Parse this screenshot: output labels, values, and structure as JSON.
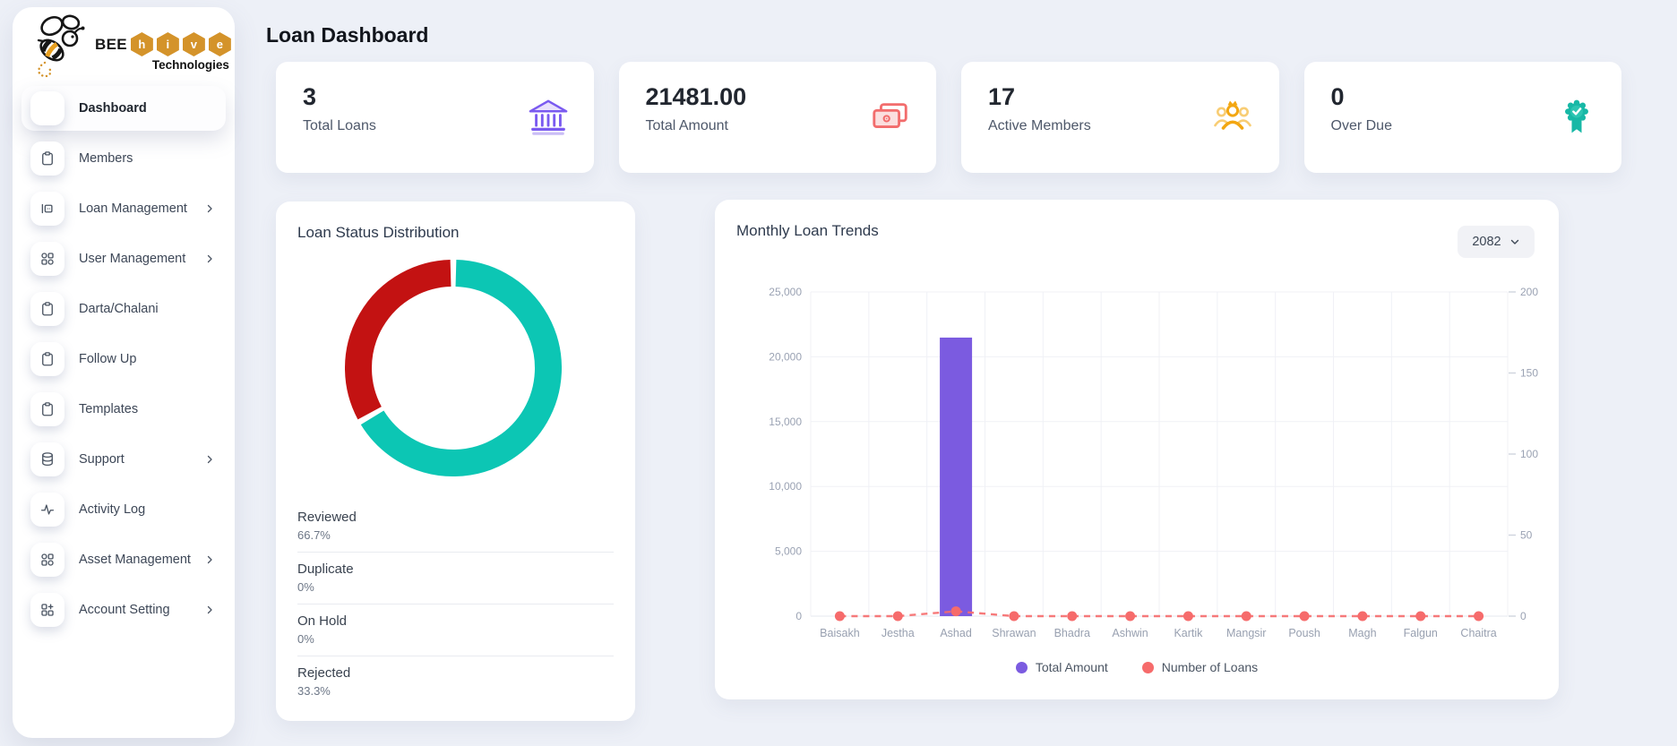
{
  "header": {
    "title": "Loan Dashboard"
  },
  "brand": {
    "prefix": "BEE",
    "hive_letters": [
      "h",
      "i",
      "v",
      "e"
    ],
    "line2": "Technologies",
    "hex_color": "#d4932a"
  },
  "sidebar": {
    "items": [
      {
        "label": "Dashboard",
        "icon": "dashboard-icon",
        "active": true,
        "has_children": false
      },
      {
        "label": "Members",
        "icon": "clipboard-icon",
        "active": false,
        "has_children": false
      },
      {
        "label": "Loan Management",
        "icon": "loan-icon",
        "active": false,
        "has_children": true
      },
      {
        "label": "User Management",
        "icon": "grid-icon",
        "active": false,
        "has_children": true
      },
      {
        "label": "Darta/Chalani",
        "icon": "clipboard-icon",
        "active": false,
        "has_children": false
      },
      {
        "label": "Follow Up",
        "icon": "clipboard-icon",
        "active": false,
        "has_children": false
      },
      {
        "label": "Templates",
        "icon": "clipboard-icon",
        "active": false,
        "has_children": false
      },
      {
        "label": "Support",
        "icon": "database-icon",
        "active": false,
        "has_children": true
      },
      {
        "label": "Activity Log",
        "icon": "activity-icon",
        "active": false,
        "has_children": false
      },
      {
        "label": "Asset Management",
        "icon": "grid-icon",
        "active": false,
        "has_children": true
      },
      {
        "label": "Account Setting",
        "icon": "grid-plus-icon",
        "active": false,
        "has_children": true
      }
    ]
  },
  "stats": [
    {
      "value": "3",
      "label": "Total Loans",
      "icon": "bank-icon",
      "accent": "#7a5af0"
    },
    {
      "value": "21481.00",
      "label": "Total Amount",
      "icon": "cash-icon",
      "accent": "#f26d6d"
    },
    {
      "value": "17",
      "label": "Active Members",
      "icon": "members-icon",
      "accent": "#f3a712"
    },
    {
      "value": "0",
      "label": "Over Due",
      "icon": "badge-icon",
      "accent": "#17b8a6"
    }
  ],
  "donut_card": {
    "title": "Loan Status Distribution",
    "legend": [
      {
        "label": "Reviewed",
        "value": "66.7%"
      },
      {
        "label": "Duplicate",
        "value": "0%"
      },
      {
        "label": "On Hold",
        "value": "0%"
      },
      {
        "label": "Rejected",
        "value": "33.3%"
      }
    ]
  },
  "trends_card": {
    "title": "Monthly Loan Trends",
    "year": "2082"
  },
  "chart_data": [
    {
      "type": "pie",
      "subtype": "doughnut",
      "title": "Loan Status Distribution",
      "labels": [
        "Reviewed",
        "Duplicate",
        "On Hold",
        "Rejected"
      ],
      "values": [
        66.7,
        0,
        0,
        33.3
      ],
      "colors": [
        "#0cc6b4",
        null,
        null,
        "#c31212"
      ],
      "legend_position": "bottom-list"
    },
    {
      "type": "bar",
      "title": "Monthly Loan Trends",
      "year": "2082",
      "categories": [
        "Baisakh",
        "Jestha",
        "Ashad",
        "Shrawan",
        "Bhadra",
        "Ashwin",
        "Kartik",
        "Mangsir",
        "Poush",
        "Magh",
        "Falgun",
        "Chaitra"
      ],
      "series": [
        {
          "name": "Total Amount",
          "type": "bar",
          "axis": "left",
          "color": "#7b5be0",
          "values": [
            0,
            0,
            21481,
            0,
            0,
            0,
            0,
            0,
            0,
            0,
            0,
            0
          ]
        },
        {
          "name": "Number of Loans",
          "type": "line",
          "line_style": "dashed",
          "axis": "right",
          "color": "#f66b6b",
          "values": [
            0,
            0,
            3,
            0,
            0,
            0,
            0,
            0,
            0,
            0,
            0,
            0
          ]
        }
      ],
      "left_axis": {
        "ticks": [
          "0",
          "5,000",
          "10,000",
          "15,000",
          "20,000",
          "25,000"
        ],
        "max": 25000
      },
      "right_axis": {
        "ticks": [
          "0",
          "50",
          "100",
          "150",
          "200"
        ],
        "max": 200
      },
      "grid": true,
      "legend_position": "bottom"
    }
  ]
}
